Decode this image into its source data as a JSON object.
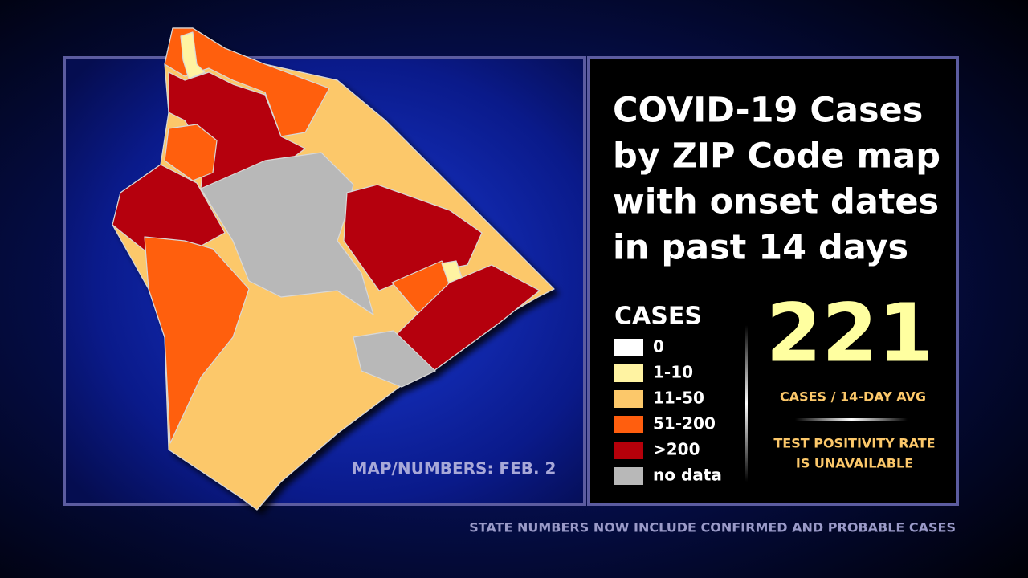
{
  "title": {
    "lines": [
      "COVID-19 Cases",
      "by ZIP Code map",
      "with onset dates",
      "in past 14 days"
    ]
  },
  "legend": {
    "title": "CASES",
    "items": [
      {
        "label": "0",
        "color": "#ffffff"
      },
      {
        "label": "1-10",
        "color": "#fff3a2"
      },
      {
        "label": "11-50",
        "color": "#fcc86a"
      },
      {
        "label": "51-200",
        "color": "#ff5e0e"
      },
      {
        "label": ">200",
        "color": "#b5000a"
      },
      {
        "label": "no data",
        "color": "#b8b8b8"
      }
    ]
  },
  "stat": {
    "value": 221,
    "label": "CASES / 14-DAY AVG"
  },
  "positivity": {
    "lines": [
      "TEST POSITIVITY RATE",
      "IS UNAVAILABLE"
    ]
  },
  "map_note": "MAP/NUMBERS: FEB. 2",
  "footer": "STATE NUMBERS NOW INCLUDE CONFIRMED AND PROBABLE CASES"
}
